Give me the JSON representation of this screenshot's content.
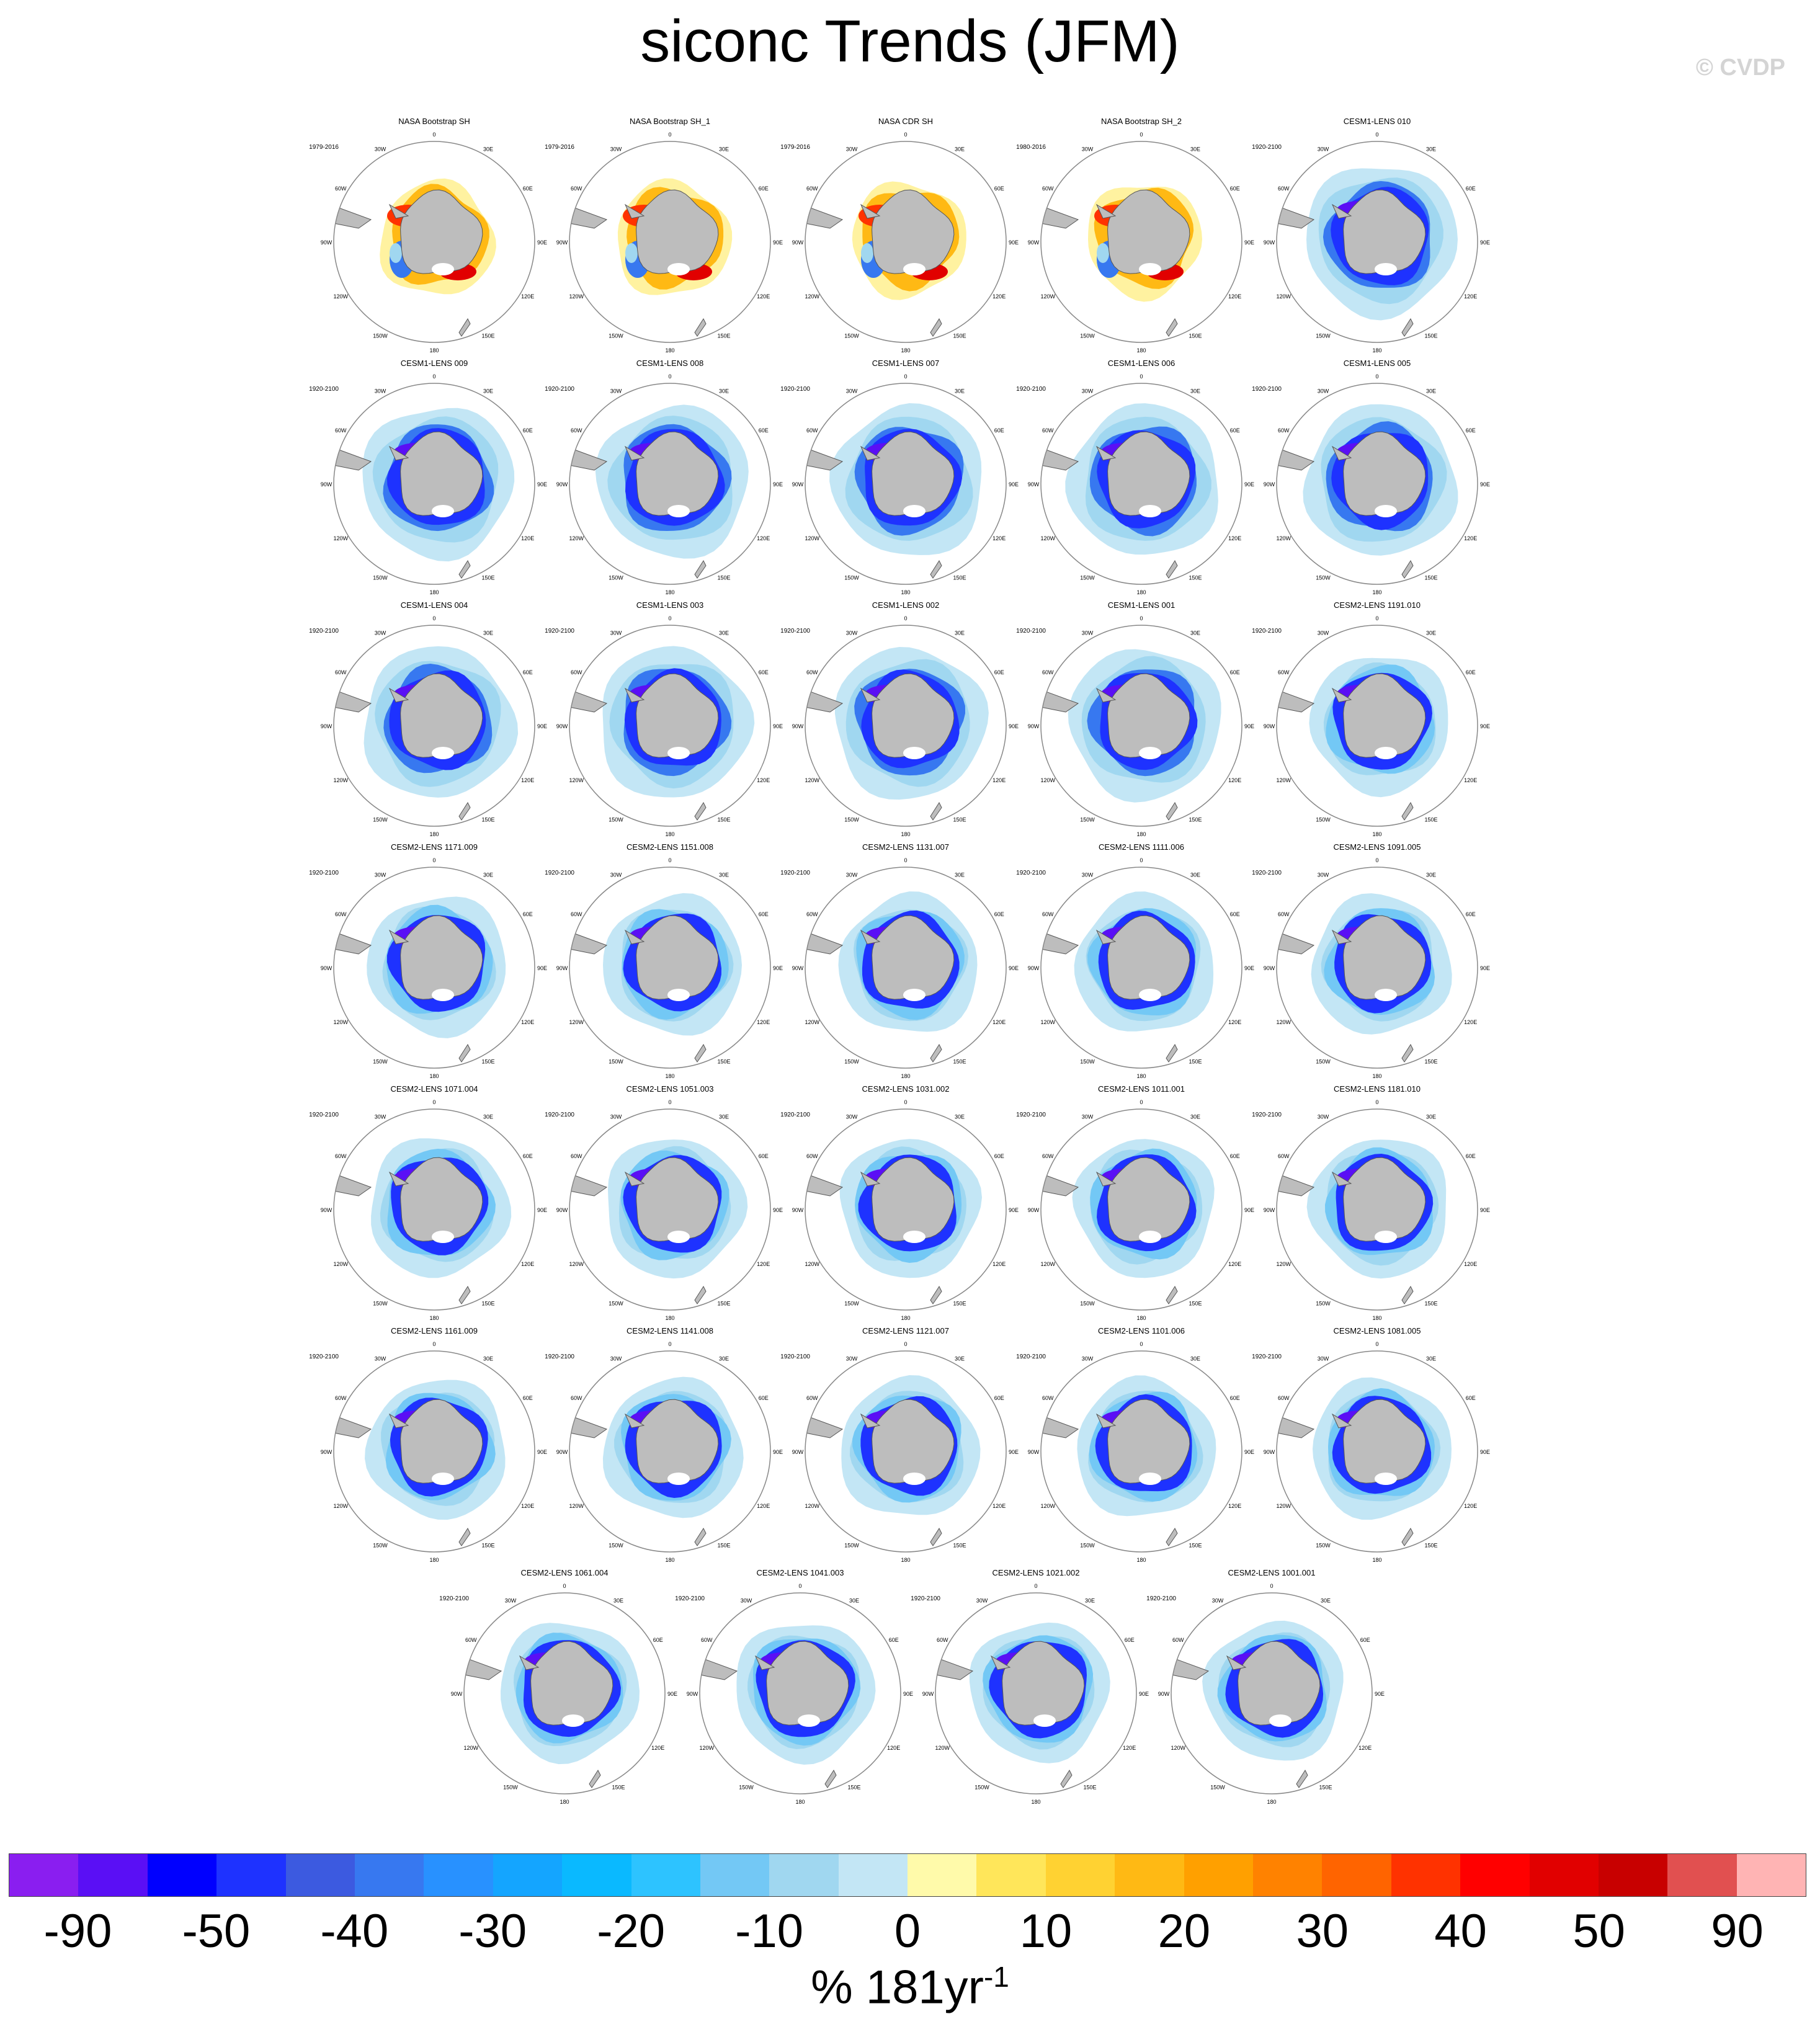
{
  "title": "siconc Trends (JFM)",
  "watermark": "© CVDP",
  "colors": {
    "land": "#bdbdbd",
    "coast_outline": "#555555",
    "map_border": "#888888"
  },
  "map_labels": {
    "lon_labels": [
      "0",
      "30E",
      "60E",
      "90E",
      "120E",
      "150E",
      "180",
      "150W",
      "120W",
      "90W",
      "60W",
      "30W"
    ]
  },
  "panels": [
    {
      "name": "NASA Bootstrap SH",
      "period": "1979-2016",
      "style": "obs"
    },
    {
      "name": "NASA Bootstrap SH_1",
      "period": "1979-2016",
      "style": "obs"
    },
    {
      "name": "NASA CDR SH",
      "period": "1979-2016",
      "style": "obs"
    },
    {
      "name": "NASA Bootstrap SH_2",
      "period": "1980-2016",
      "style": "obs"
    },
    {
      "name": "CESM1-LENS 010",
      "period": "1920-2100",
      "style": "model1"
    },
    {
      "name": "CESM1-LENS 009",
      "period": "1920-2100",
      "style": "model1"
    },
    {
      "name": "CESM1-LENS 008",
      "period": "1920-2100",
      "style": "model1"
    },
    {
      "name": "CESM1-LENS 007",
      "period": "1920-2100",
      "style": "model1"
    },
    {
      "name": "CESM1-LENS 006",
      "period": "1920-2100",
      "style": "model1"
    },
    {
      "name": "CESM1-LENS 005",
      "period": "1920-2100",
      "style": "model1"
    },
    {
      "name": "CESM1-LENS 004",
      "period": "1920-2100",
      "style": "model1"
    },
    {
      "name": "CESM1-LENS 003",
      "period": "1920-2100",
      "style": "model1"
    },
    {
      "name": "CESM1-LENS 002",
      "period": "1920-2100",
      "style": "model1"
    },
    {
      "name": "CESM1-LENS 001",
      "period": "1920-2100",
      "style": "model1"
    },
    {
      "name": "CESM2-LENS 1191.010",
      "period": "1920-2100",
      "style": "model2"
    },
    {
      "name": "CESM2-LENS 1171.009",
      "period": "1920-2100",
      "style": "model2"
    },
    {
      "name": "CESM2-LENS 1151.008",
      "period": "1920-2100",
      "style": "model2"
    },
    {
      "name": "CESM2-LENS 1131.007",
      "period": "1920-2100",
      "style": "model2"
    },
    {
      "name": "CESM2-LENS 1111.006",
      "period": "1920-2100",
      "style": "model2"
    },
    {
      "name": "CESM2-LENS 1091.005",
      "period": "1920-2100",
      "style": "model2"
    },
    {
      "name": "CESM2-LENS 1071.004",
      "period": "1920-2100",
      "style": "model2"
    },
    {
      "name": "CESM2-LENS 1051.003",
      "period": "1920-2100",
      "style": "model2"
    },
    {
      "name": "CESM2-LENS 1031.002",
      "period": "1920-2100",
      "style": "model2"
    },
    {
      "name": "CESM2-LENS 1011.001",
      "period": "1920-2100",
      "style": "model2"
    },
    {
      "name": "CESM2-LENS 1181.010",
      "period": "1920-2100",
      "style": "model2"
    },
    {
      "name": "CESM2-LENS 1161.009",
      "period": "1920-2100",
      "style": "model2"
    },
    {
      "name": "CESM2-LENS 1141.008",
      "period": "1920-2100",
      "style": "model2"
    },
    {
      "name": "CESM2-LENS 1121.007",
      "period": "1920-2100",
      "style": "model2"
    },
    {
      "name": "CESM2-LENS 1101.006",
      "period": "1920-2100",
      "style": "model2"
    },
    {
      "name": "CESM2-LENS 1081.005",
      "period": "1920-2100",
      "style": "model2"
    },
    {
      "name": "CESM2-LENS 1061.004",
      "period": "1920-2100",
      "style": "model2"
    },
    {
      "name": "CESM2-LENS 1041.003",
      "period": "1920-2100",
      "style": "model2"
    },
    {
      "name": "CESM2-LENS 1021.002",
      "period": "1920-2100",
      "style": "model2"
    },
    {
      "name": "CESM2-LENS 1001.001",
      "period": "1920-2100",
      "style": "model2"
    }
  ],
  "chart_data": {
    "type": "heatmap",
    "title": "siconc Trends (JFM)",
    "projection": "south polar stereographic",
    "colorbar": {
      "units": "% 181yr",
      "units_exponent": "-1",
      "colors": [
        "#8a1ef0",
        "#5a0ff5",
        "#0000ff",
        "#1e32ff",
        "#3c5ae0",
        "#3778f0",
        "#2891ff",
        "#14a5ff",
        "#0ab9ff",
        "#2dc3ff",
        "#73c8f5",
        "#a0d7f0",
        "#c3e6f5",
        "#fffaaa",
        "#ffe65a",
        "#ffd232",
        "#ffb914",
        "#ffa000",
        "#ff8200",
        "#ff6400",
        "#ff3200",
        "#ff0000",
        "#e10000",
        "#c80000",
        "#e15050",
        "#ffb4b4"
      ],
      "tick_labels": [
        "-90",
        "-50",
        "-40",
        "-30",
        "-20",
        "-10",
        "0",
        "10",
        "20",
        "30",
        "40",
        "50",
        "90"
      ]
    }
  }
}
